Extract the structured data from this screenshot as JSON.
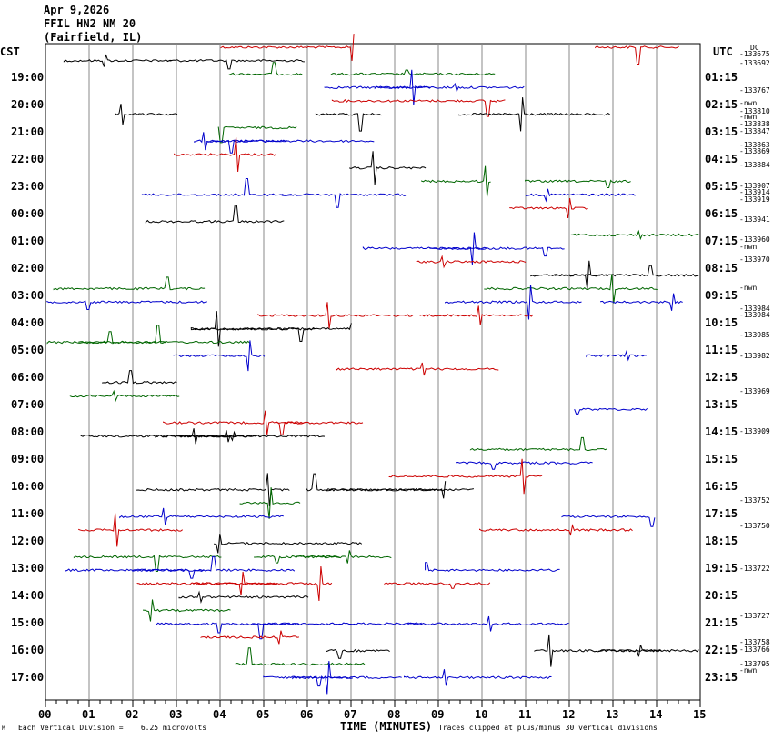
{
  "header": {
    "date": "Apr 9,2026",
    "station": "FFIL HN2 NM 20",
    "location": "(Fairfield, IL)"
  },
  "chart_data": {
    "type": "line",
    "title": "FFIL HN2 NM 20 (Fairfield, IL)",
    "xlabel": "TIME (MINUTES)",
    "xlim": [
      0,
      15
    ],
    "x_ticks": [
      "00",
      "01",
      "02",
      "03",
      "04",
      "05",
      "06",
      "07",
      "08",
      "09",
      "10",
      "11",
      "12",
      "13",
      "14",
      "15"
    ],
    "left_axis_label": "CST",
    "right_axis_label": "UTC",
    "left_times": [
      "19:00",
      "20:00",
      "21:00",
      "22:00",
      "23:00",
      "00:00",
      "01:00",
      "02:00",
      "03:00",
      "04:00",
      "05:00",
      "06:00",
      "07:00",
      "08:00",
      "09:00",
      "10:00",
      "11:00",
      "12:00",
      "13:00",
      "14:00",
      "15:00",
      "16:00",
      "17:00"
    ],
    "right_times": [
      "01:15",
      "02:15",
      "03:15",
      "04:15",
      "05:15",
      "06:15",
      "07:15",
      "08:15",
      "09:15",
      "10:15",
      "11:15",
      "12:15",
      "13:15",
      "14:15",
      "15:15",
      "16:15",
      "17:15",
      "18:15",
      "19:15",
      "20:15",
      "21:15",
      "22:15",
      "23:15"
    ],
    "right_annotations": [
      "DC",
      "-133675",
      "-133692",
      "-133767",
      "-nwn",
      "-133810",
      "-nwn",
      "-133838",
      "-133847",
      "-133863",
      "-133869",
      "-133884",
      "-133907",
      "-133914",
      "-133919",
      "-133941",
      "-133960",
      "-nwn",
      "-133970",
      "-nwn",
      "-133984",
      "-133984",
      "-133985",
      "-133982",
      "-133969",
      "-133909",
      "-133752",
      "-133750",
      "-133722",
      "-133727",
      "-133758",
      "-133766",
      "-133795",
      "-nwn"
    ],
    "trace_colors": [
      "#cc0000",
      "#000000",
      "#006600",
      "#0000cc"
    ],
    "footer_left": "Each Vertical Division =    6.25 microvolts",
    "footer_right": "Traces clipped at plus/minus 30 vertical divisions",
    "corner_mark": "M"
  }
}
